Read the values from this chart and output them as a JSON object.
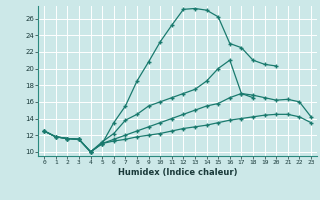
{
  "xlabel": "Humidex (Indice chaleur)",
  "background_color": "#cce8e8",
  "grid_color": "#ffffff",
  "line_color": "#1a7a6e",
  "xlim": [
    -0.5,
    23.5
  ],
  "ylim": [
    9.5,
    27.5
  ],
  "yticks": [
    10,
    12,
    14,
    16,
    18,
    20,
    22,
    24,
    26
  ],
  "xticks": [
    0,
    1,
    2,
    3,
    4,
    5,
    6,
    7,
    8,
    9,
    10,
    11,
    12,
    13,
    14,
    15,
    16,
    17,
    18,
    19,
    20,
    21,
    22,
    23
  ],
  "curve1_x": [
    0,
    1,
    2,
    3,
    4,
    5,
    6,
    7,
    8,
    9,
    10,
    11,
    12,
    13,
    14,
    15,
    16,
    17,
    18,
    19,
    20
  ],
  "curve1_y": [
    12.5,
    11.8,
    11.6,
    11.5,
    10.0,
    11.0,
    13.5,
    15.5,
    18.5,
    20.8,
    23.2,
    25.2,
    27.1,
    27.2,
    27.0,
    26.2,
    23.0,
    22.5,
    21.0,
    20.5,
    20.3
  ],
  "curve2_x": [
    0,
    1,
    2,
    3,
    4,
    5,
    6,
    7,
    8,
    9,
    10,
    11,
    12,
    13,
    14,
    15,
    16,
    17,
    18
  ],
  "curve2_y": [
    12.5,
    11.8,
    11.6,
    11.5,
    10.0,
    11.2,
    12.2,
    13.8,
    14.5,
    15.5,
    16.0,
    16.5,
    17.0,
    17.5,
    18.5,
    20.0,
    21.0,
    17.0,
    16.5
  ],
  "curve3_x": [
    0,
    1,
    2,
    3,
    4,
    5,
    6,
    7,
    8,
    9,
    10,
    11,
    12,
    13,
    14,
    15,
    16,
    17,
    18,
    19,
    20,
    21,
    22,
    23
  ],
  "curve3_y": [
    12.5,
    11.8,
    11.6,
    11.5,
    10.0,
    11.0,
    11.5,
    12.0,
    12.5,
    13.0,
    13.5,
    14.0,
    14.5,
    15.0,
    15.5,
    15.8,
    16.5,
    17.0,
    16.8,
    16.5,
    16.2,
    16.3,
    16.0,
    14.2
  ],
  "curve4_x": [
    0,
    1,
    2,
    3,
    4,
    5,
    6,
    7,
    8,
    9,
    10,
    11,
    12,
    13,
    14,
    15,
    16,
    17,
    18,
    19,
    20,
    21,
    22,
    23
  ],
  "curve4_y": [
    12.5,
    11.8,
    11.6,
    11.5,
    10.0,
    11.0,
    11.3,
    11.5,
    11.8,
    12.0,
    12.2,
    12.5,
    12.8,
    13.0,
    13.2,
    13.5,
    13.8,
    14.0,
    14.2,
    14.4,
    14.5,
    14.5,
    14.2,
    13.5
  ]
}
